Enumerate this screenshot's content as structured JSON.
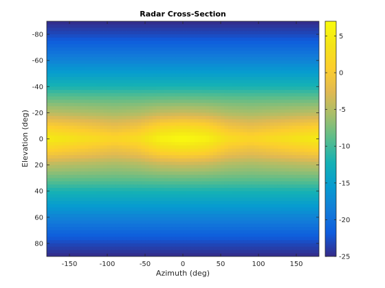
{
  "chart_data": {
    "type": "heatmap",
    "title": "Radar Cross-Section",
    "xlabel": "Azimuth (deg)",
    "ylabel": "Elevation (deg)",
    "xlim": [
      -180,
      180
    ],
    "ylim": [
      -90,
      90
    ],
    "y_axis_reversed": true,
    "x_ticks": [
      -150,
      -100,
      -50,
      0,
      50,
      100,
      150
    ],
    "y_ticks": [
      -80,
      -60,
      -40,
      -20,
      0,
      20,
      40,
      60,
      80
    ],
    "colorbar": {
      "colormap": "parula",
      "limits": [
        -25,
        7
      ],
      "ticks": [
        -25,
        -20,
        -15,
        -10,
        -5,
        0,
        5
      ]
    },
    "description_of_values": "RCS in dB, peaked near elevation 0 (about 7 dB at azimuth 0, about 2-3 dB at azimuth ±90, about 5 dB at ±180) and falling to about -25 dB at elevation ±90",
    "elevation_profile_at_azimuth_0": {
      "elevation": [
        -90,
        -80,
        -60,
        -40,
        -20,
        -10,
        0,
        10,
        20,
        40,
        60,
        80,
        90
      ],
      "values": [
        -25,
        -23,
        -18,
        -12,
        -4,
        2,
        7,
        2,
        -4,
        -12,
        -18,
        -23,
        -25
      ]
    },
    "peak_along_elevation_0": {
      "azimuth": [
        -180,
        -150,
        -120,
        -90,
        -60,
        -30,
        0,
        30,
        60,
        90,
        120,
        150,
        180
      ],
      "values": [
        5,
        4,
        3,
        2,
        3,
        6,
        7,
        6,
        3,
        2,
        3,
        4,
        5
      ]
    }
  }
}
